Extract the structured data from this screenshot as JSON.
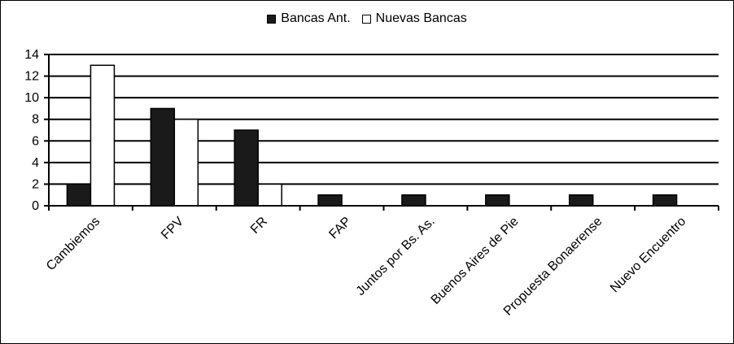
{
  "chart_data": {
    "type": "bar",
    "categories": [
      "Cambiemos",
      "FPV",
      "FR",
      "FAP",
      "Juntos por Bs. As.",
      "Buenos Aires de Pie",
      "Propuesta Bonaerense",
      "Nuevo Encuentro"
    ],
    "series": [
      {
        "name": "Bancas Ant.",
        "values": [
          2,
          9,
          7,
          1,
          1,
          1,
          1,
          1
        ],
        "color": "#1a1a1a"
      },
      {
        "name": "Nuevas Bancas",
        "values": [
          13,
          8,
          2,
          0,
          0,
          0,
          0,
          0
        ],
        "color": "#ffffff"
      }
    ],
    "ylim": [
      0,
      14
    ],
    "yticks": [
      0,
      2,
      4,
      6,
      8,
      10,
      12,
      14
    ],
    "grid": true,
    "legend_position": "top-center",
    "title": "",
    "xlabel": "",
    "ylabel": ""
  }
}
